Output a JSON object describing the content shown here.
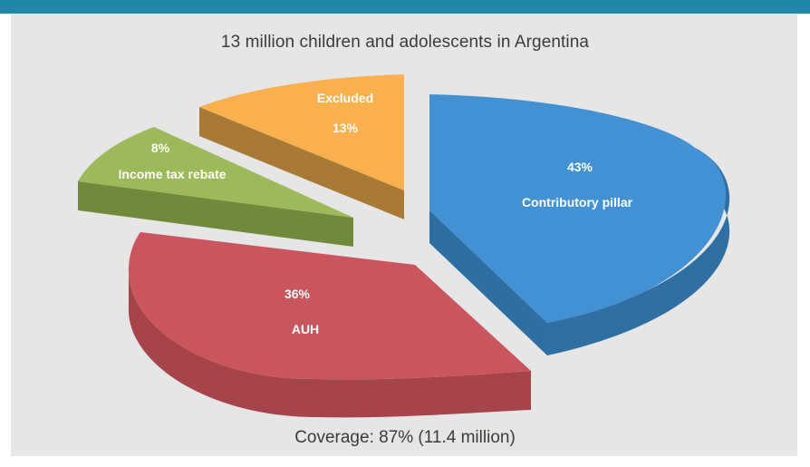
{
  "chart_data": {
    "type": "pie",
    "title": "13 million children and adolescents in Argentina",
    "subtitle": "Coverage: 87% (11.4 million)",
    "slices": [
      {
        "label": "Contributory pillar",
        "value": 43,
        "value_label": "43%",
        "color": "#4391d2"
      },
      {
        "label": "AUH",
        "value": 36,
        "value_label": "36%",
        "color": "#c9565e"
      },
      {
        "label": "Income tax rebate",
        "value": 8,
        "value_label": "8%",
        "color": "#9cba5a"
      },
      {
        "label": "Excluded",
        "value": 13,
        "value_label": "13%",
        "color": "#f9b04e"
      }
    ]
  },
  "colors": {
    "top_bar": "#1f88a8",
    "panel_background": "#e6e6e6",
    "text": "#3b3b3b"
  }
}
